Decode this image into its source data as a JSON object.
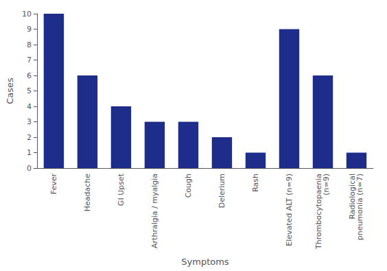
{
  "chart_data": {
    "type": "bar",
    "categories": [
      "Fever",
      "Headache",
      "GI Upset",
      "Arthralgia / myalgia",
      "Cough",
      "Delerium",
      "Rash",
      "Elevated ALT (n=9)",
      "Thrombocytopaenia\n(n=9)",
      "Radiological\npneumonia (n=7)"
    ],
    "values": [
      10,
      6,
      4,
      3,
      3,
      2,
      1,
      9,
      6,
      1
    ],
    "color": "#1f2d8a",
    "xlabel": "Symptoms",
    "ylabel": "Cases",
    "ylim": [
      0,
      10
    ],
    "yticks": [
      0,
      1,
      2,
      3,
      4,
      5,
      6,
      7,
      8,
      9,
      10
    ],
    "grid": false
  }
}
